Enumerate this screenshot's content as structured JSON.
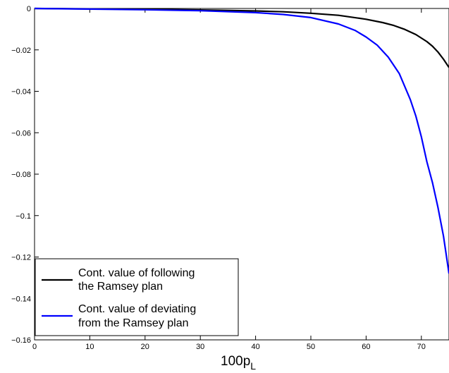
{
  "chart_data": {
    "type": "line",
    "title": "",
    "xlabel": "100p",
    "xlabel_subscript": "L",
    "ylabel": "",
    "xlim": [
      0,
      75
    ],
    "ylim": [
      -0.16,
      0
    ],
    "grid": false,
    "legend_position": "bottom-left",
    "x_ticks": [
      0,
      10,
      20,
      30,
      40,
      50,
      60,
      70
    ],
    "y_ticks": [
      0,
      -0.02,
      -0.04,
      -0.06,
      -0.08,
      -0.1,
      -0.12,
      -0.14,
      -0.16
    ],
    "x_tick_labels": [
      "0",
      "10",
      "20",
      "30",
      "40",
      "50",
      "60",
      "70"
    ],
    "y_tick_labels": [
      "0",
      "−0.02",
      "−0.04",
      "−0.06",
      "−0.08",
      "−0.1",
      "−0.12",
      "−0.14",
      "−0.16"
    ],
    "legend": [
      {
        "lines": [
          "Cont. value of following",
          "the Ramsey plan"
        ],
        "color": "#000000"
      },
      {
        "lines": [
          "Cont. value of deviating",
          "from the Ramsey plan"
        ],
        "color": "#0000ff"
      }
    ],
    "series": [
      {
        "color": "#000000",
        "x": [
          0,
          10,
          20,
          30,
          40,
          45,
          50,
          55,
          60,
          63,
          65,
          67,
          69,
          71,
          72,
          73,
          74,
          75
        ],
        "y": [
          0,
          -0.0002,
          -0.0004,
          -0.0007,
          -0.0012,
          -0.0016,
          -0.0023,
          -0.0033,
          -0.0052,
          -0.0068,
          -0.0082,
          -0.0101,
          -0.0126,
          -0.016,
          -0.0182,
          -0.021,
          -0.0245,
          -0.0285
        ]
      },
      {
        "color": "#0000ff",
        "x": [
          0,
          10,
          20,
          30,
          40,
          45,
          50,
          55,
          58,
          60,
          62,
          64,
          66,
          68,
          69,
          70,
          71,
          72,
          73,
          74,
          75
        ],
        "y": [
          0,
          -0.0003,
          -0.0006,
          -0.0011,
          -0.002,
          -0.0029,
          -0.0044,
          -0.0075,
          -0.0106,
          -0.0138,
          -0.0177,
          -0.0235,
          -0.0314,
          -0.044,
          -0.052,
          -0.062,
          -0.074,
          -0.084,
          -0.096,
          -0.11,
          -0.128
        ]
      }
    ]
  }
}
